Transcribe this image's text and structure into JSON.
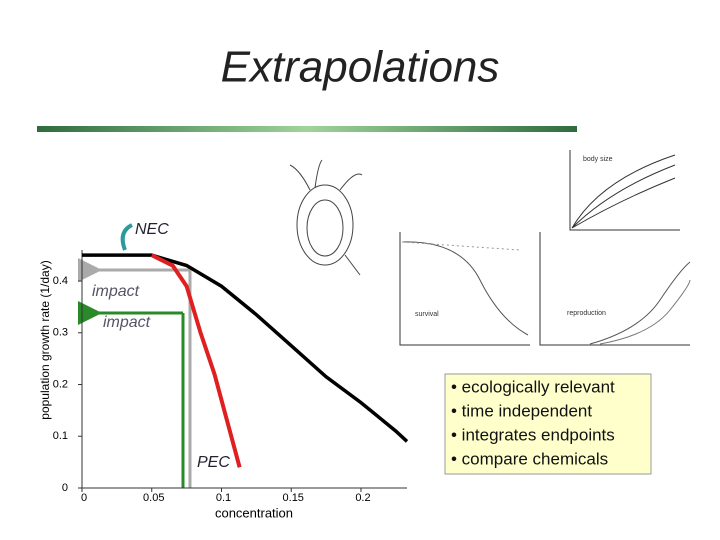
{
  "title": "Extrapolations",
  "chart_data": {
    "type": "line",
    "xlabel": "concentration",
    "ylabel": "population growth rate (1/day)",
    "xlim": [
      0,
      0.233
    ],
    "ylim": [
      0,
      0.46
    ],
    "xticks": [
      0,
      0.05,
      0.1,
      0.15,
      0.2
    ],
    "yticks": [
      0,
      0.1,
      0.2,
      0.3,
      0.4
    ],
    "series": [
      {
        "color": "#000000",
        "x": [
          0,
          0.05,
          0.075,
          0.1,
          0.125,
          0.15,
          0.175,
          0.2,
          0.225,
          0.233
        ],
        "values": [
          0.45,
          0.45,
          0.43,
          0.39,
          0.335,
          0.275,
          0.215,
          0.165,
          0.11,
          0.09
        ]
      },
      {
        "color": "#e02020",
        "x": [
          0.05,
          0.065,
          0.075,
          0.085,
          0.095,
          0.105,
          0.113
        ],
        "values": [
          0.45,
          0.43,
          0.39,
          0.3,
          0.22,
          0.12,
          0.04
        ]
      }
    ],
    "annotations": [
      "NEC",
      "impact",
      "impact",
      "PEC"
    ]
  },
  "thumbnails": [
    "body size",
    "survival",
    "reproduction"
  ],
  "bullets": [
    "• ecologically relevant",
    "• time independent",
    "• integrates endpoints",
    "• compare chemicals"
  ]
}
